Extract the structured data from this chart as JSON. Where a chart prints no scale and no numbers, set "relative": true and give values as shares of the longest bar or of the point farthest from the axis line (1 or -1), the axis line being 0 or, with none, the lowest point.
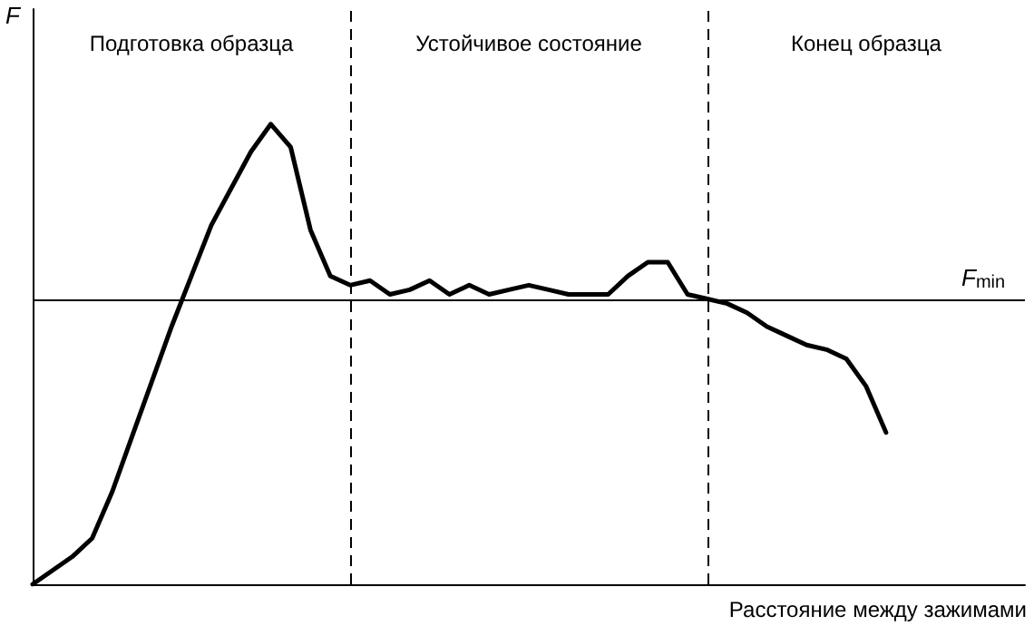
{
  "chart_data": {
    "type": "line",
    "relative": true,
    "xlabel": "Расстояние между зажимами",
    "ylabel": "F",
    "grid": false,
    "marker": "none",
    "line_style": "solid",
    "categories": [
      null,
      null,
      null,
      null,
      null,
      null,
      null,
      null,
      null,
      null,
      null,
      null,
      null,
      null,
      null,
      null,
      null,
      null,
      null,
      null,
      null,
      null,
      null,
      null,
      null,
      null,
      null,
      null,
      null,
      null,
      null,
      null,
      null,
      null,
      null,
      null,
      null,
      null,
      null,
      null,
      null,
      null,
      null,
      null,
      null,
      null,
      null,
      null,
      null,
      null,
      null
    ],
    "series": [
      {
        "color": "#000000",
        "values": [
          0,
          0.03,
          0.06,
          0.1,
          0.2,
          0.32,
          0.44,
          0.56,
          0.67,
          0.78,
          0.86,
          0.94,
          1,
          0.95,
          0.77,
          0.67,
          0.65,
          0.66,
          0.63,
          0.64,
          0.66,
          0.63,
          0.65,
          0.63,
          0.64,
          0.65,
          0.64,
          0.63,
          0.63,
          0.63,
          0.67,
          0.7,
          0.7,
          0.63,
          0.62,
          0.61,
          0.59,
          0.56,
          0.54,
          0.52,
          0.51,
          0.49,
          0.43,
          0.33,
          null,
          null,
          null,
          null,
          null,
          null,
          null
        ]
      }
    ],
    "ref_lines": [
      {
        "axis": "y",
        "value": 0.62,
        "label": "F$_{min}$",
        "line_style": "solid",
        "color": "#000000"
      }
    ],
    "annotations": [
      "Подготовка образца",
      "Устойчивое состояние",
      "Конец образца"
    ]
  }
}
